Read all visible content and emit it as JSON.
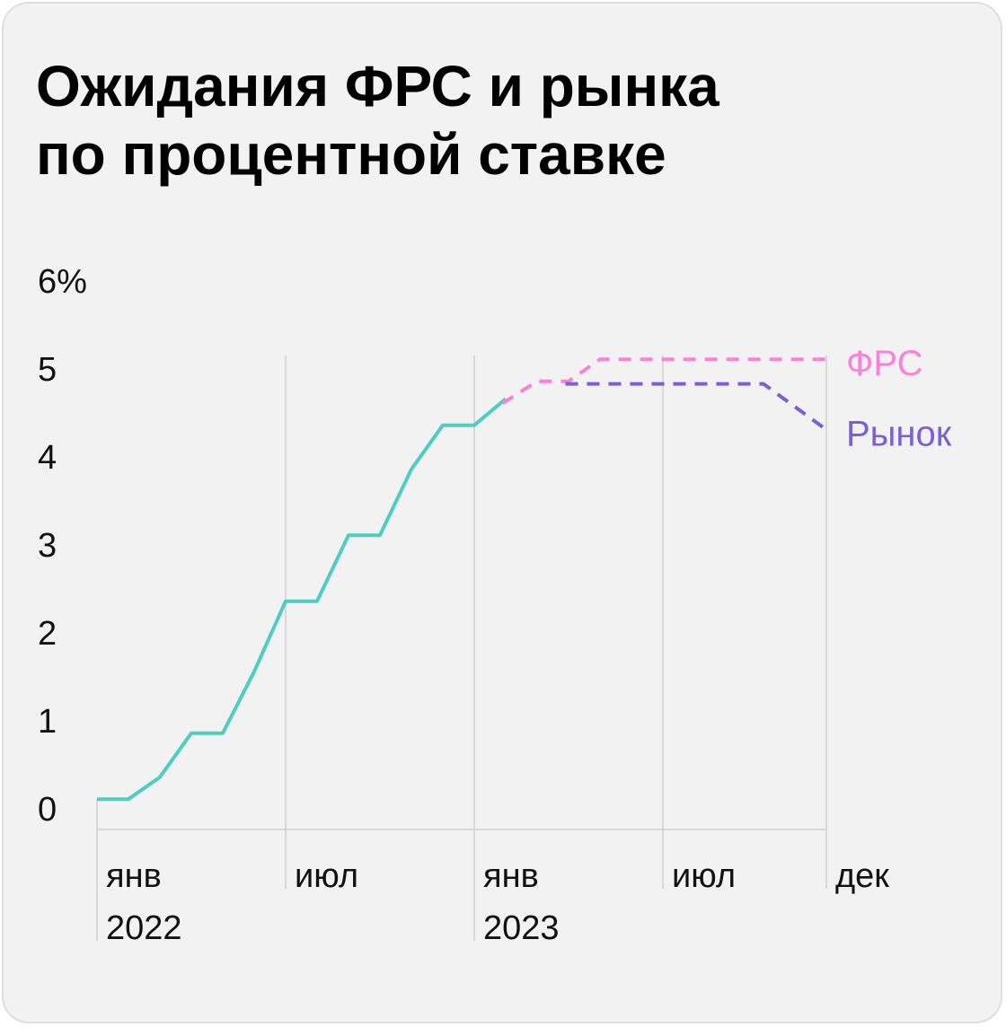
{
  "title_lines": [
    "Ожидания ФРС и рынка",
    "по процентной ставке"
  ],
  "chart_data": {
    "type": "line",
    "title": "Ожидания ФРС и рынка по процентной ставке",
    "y_ticks": [
      "6%",
      "5",
      "4",
      "3",
      "2",
      "1",
      "0"
    ],
    "y_tick_values": [
      6,
      5,
      4,
      3,
      2,
      1,
      0
    ],
    "ylim": [
      0,
      6
    ],
    "x_ticks": [
      {
        "month": 0,
        "line1": "янв",
        "line2": "2022"
      },
      {
        "month": 6,
        "line1": "июл",
        "line2": ""
      },
      {
        "month": 12,
        "line1": "янв",
        "line2": "2023"
      },
      {
        "month": 18,
        "line1": "июл",
        "line2": ""
      },
      {
        "month": 23.2,
        "line1": "дек",
        "line2": ""
      }
    ],
    "xlim_months": [
      0,
      23.2
    ],
    "series": [
      {
        "key": "actual",
        "color": "#4ecdc0",
        "dashed": false,
        "points": [
          [
            0,
            0.1
          ],
          [
            1,
            0.1
          ],
          [
            2,
            0.35
          ],
          [
            3,
            0.85
          ],
          [
            4,
            0.85
          ],
          [
            5,
            1.55
          ],
          [
            6,
            2.35
          ],
          [
            7,
            2.35
          ],
          [
            8,
            3.1
          ],
          [
            9,
            3.1
          ],
          [
            10,
            3.85
          ],
          [
            11,
            4.35
          ],
          [
            12,
            4.35
          ],
          [
            13,
            4.65
          ]
        ]
      },
      {
        "key": "fed",
        "name": "ФРС",
        "color": "#ff7fd8",
        "dashed": true,
        "points": [
          [
            12.9,
            4.6
          ],
          [
            14,
            4.85
          ],
          [
            15,
            4.85
          ],
          [
            16,
            5.1
          ],
          [
            23.2,
            5.1
          ]
        ]
      },
      {
        "key": "market",
        "name": "Рынок",
        "color": "#7b5fd9",
        "dashed": true,
        "points": [
          [
            14.9,
            4.82
          ],
          [
            21.2,
            4.82
          ],
          [
            23.2,
            4.3
          ]
        ]
      }
    ]
  }
}
